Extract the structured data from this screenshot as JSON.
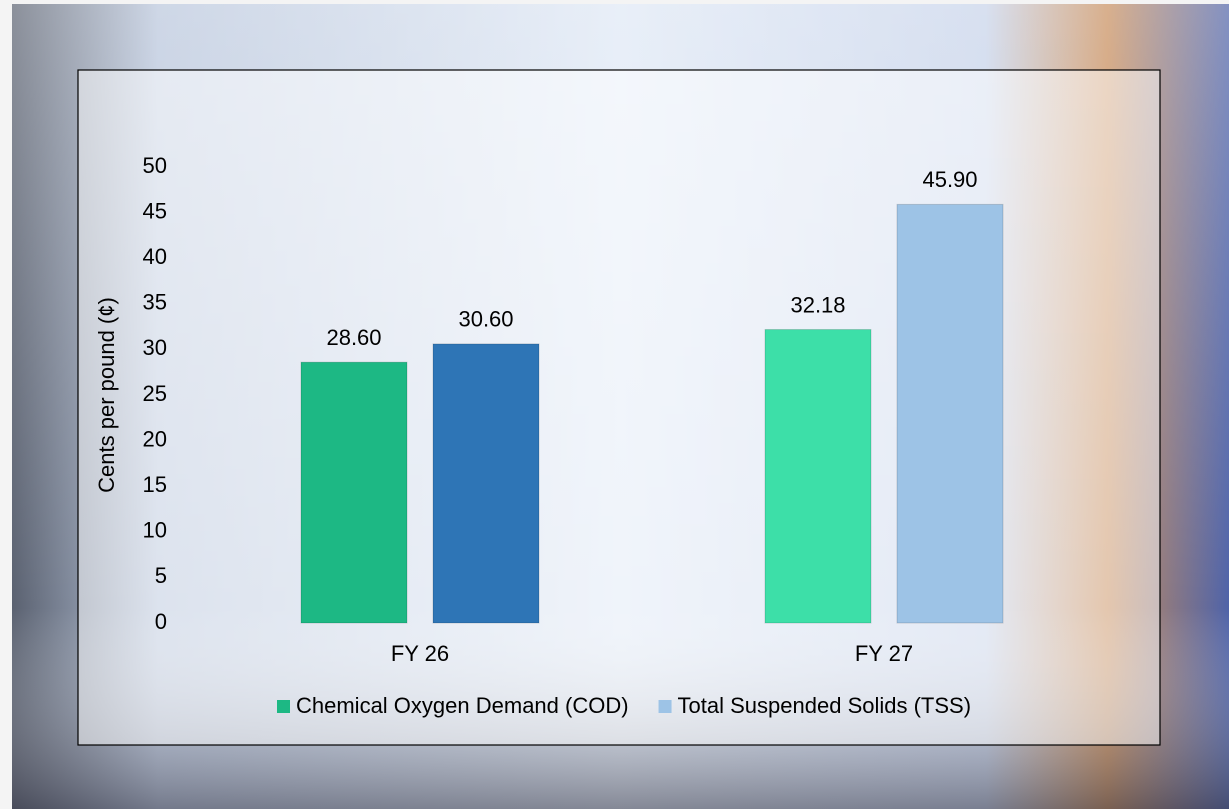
{
  "chart_data": {
    "type": "bar",
    "y_label": "Cents per pound (¢)",
    "categories": [
      "FY 26",
      "FY 27"
    ],
    "series": [
      {
        "name": "Chemical Oxygen Demand (COD)",
        "color": "#1db884",
        "colors": [
          "#1db884",
          "#3ddfa8"
        ],
        "values": [
          28.6,
          32.18
        ],
        "value_labels": [
          "28.60",
          "32.18"
        ]
      },
      {
        "name": "Total Suspended Solids (TSS)",
        "color": "#9dc3e6",
        "colors": [
          "#2e75b6",
          "#9dc3e6"
        ],
        "values": [
          30.6,
          45.9
        ],
        "value_labels": [
          "30.60",
          "45.90"
        ]
      }
    ],
    "ylim": [
      0,
      50
    ],
    "yticks": [
      0,
      5,
      10,
      15,
      20,
      25,
      30,
      35,
      40,
      45,
      50
    ],
    "grid": false,
    "legend": "bottom"
  }
}
